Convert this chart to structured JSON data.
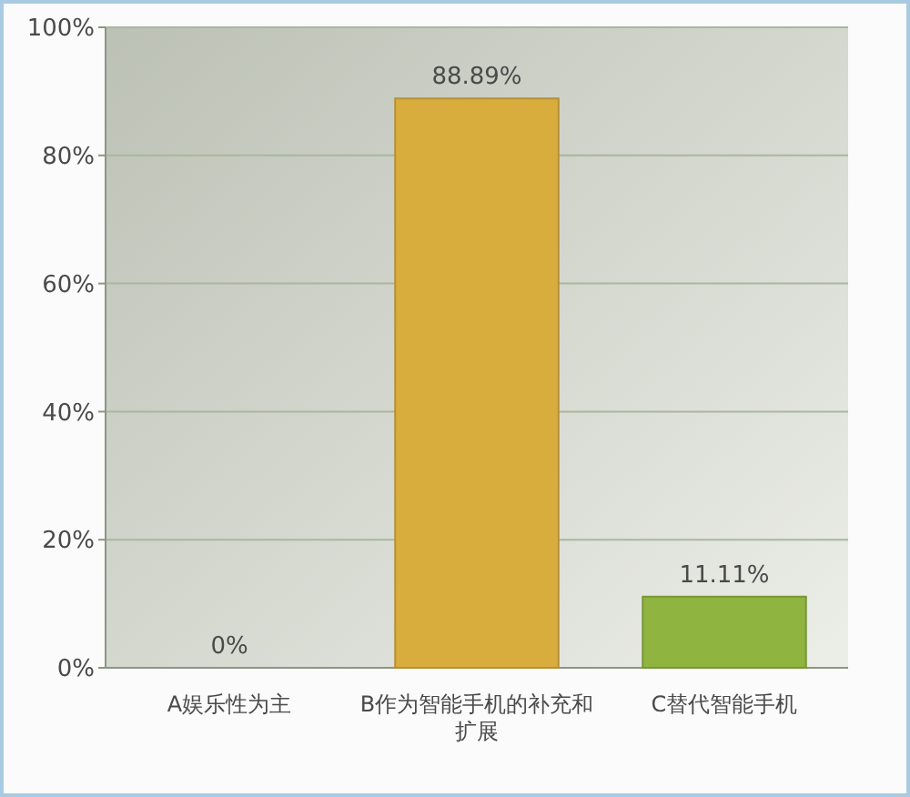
{
  "chart_data": {
    "type": "bar",
    "categories": [
      "A娱乐性为主",
      "B作为智能手机的补充和扩展",
      "C替代智能手机"
    ],
    "values": [
      0,
      88.89,
      11.11
    ],
    "colors": [
      "#bcd4ec",
      "#d9ac3e",
      "#8fb440"
    ],
    "value_labels": [
      "0%",
      "88.89%",
      "11.11%"
    ],
    "ylim": [
      0,
      100
    ],
    "yticks": [
      {
        "value": 0,
        "label": "0%"
      },
      {
        "value": 20,
        "label": "20%"
      },
      {
        "value": 40,
        "label": "40%"
      },
      {
        "value": 60,
        "label": "60%"
      },
      {
        "value": 80,
        "label": "80%"
      },
      {
        "value": 100,
        "label": "100%"
      }
    ],
    "grid": "y"
  }
}
